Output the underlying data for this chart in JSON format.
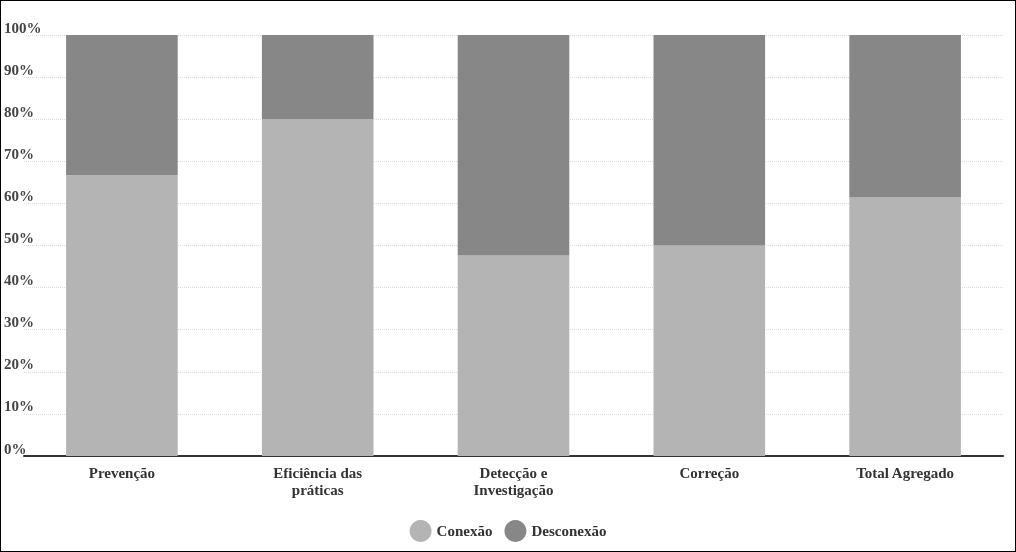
{
  "chart_data": {
    "type": "bar",
    "stacked": true,
    "categories": [
      "Prevenção",
      "Eficiência das\npráticas",
      "Detecção e\nInvestigação",
      "Correção",
      "Total Agregado"
    ],
    "series": [
      {
        "name": "Conexão",
        "color": "#b4b4b4",
        "values": [
          66.7,
          80,
          47.6,
          50,
          61.5
        ]
      },
      {
        "name": "Desconexão",
        "color": "#878787",
        "values": [
          33.3,
          20,
          52.4,
          50,
          38.5
        ]
      }
    ],
    "ylim": [
      0,
      100
    ],
    "yticks": [
      {
        "value": 0,
        "label": "0%"
      },
      {
        "value": 10,
        "label": "10%"
      },
      {
        "value": 20,
        "label": "20%"
      },
      {
        "value": 30,
        "label": "30%"
      },
      {
        "value": 40,
        "label": "40%"
      },
      {
        "value": 50,
        "label": "50%"
      },
      {
        "value": 60,
        "label": "60%"
      },
      {
        "value": 70,
        "label": "70%"
      },
      {
        "value": 80,
        "label": "80%"
      },
      {
        "value": 90,
        "label": "90%"
      },
      {
        "value": 100,
        "label": "100%"
      }
    ],
    "grid": "y",
    "legend": "bottom"
  }
}
